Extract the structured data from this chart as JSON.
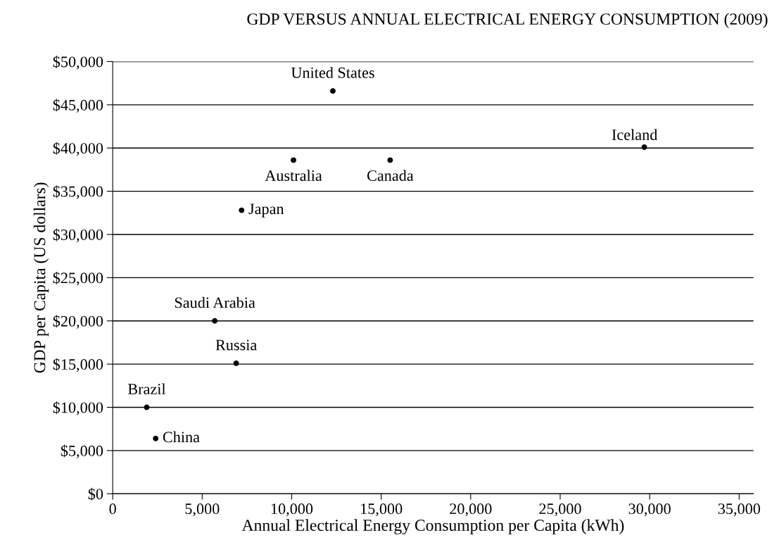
{
  "chart_data": {
    "type": "scatter",
    "title": "GDP VERSUS ANNUAL ELECTRICAL ENERGY CONSUMPTION (2009)",
    "xlabel": "Annual Electrical Energy Consumption per Capita (kWh)",
    "ylabel": "GDP per Capita (US dollars)",
    "series": [
      {
        "color": "#000000",
        "x": [
          12300,
          10100,
          15500,
          29700,
          7200,
          5700,
          6900,
          1900,
          2400
        ],
        "values": [
          46600,
          38600,
          38600,
          40100,
          32800,
          20000,
          15100,
          10000,
          6400
        ]
      }
    ],
    "annotations": [
      {
        "text": "United States",
        "x": 12300,
        "y": 46600
      },
      {
        "text": "Australia",
        "x": 10100,
        "y": 38600
      },
      {
        "text": "Canada",
        "x": 15500,
        "y": 38600
      },
      {
        "text": "Iceland",
        "x": 29700,
        "y": 40100
      },
      {
        "text": "Japan",
        "x": 7200,
        "y": 32800
      },
      {
        "text": "Saudi Arabia",
        "x": 5700,
        "y": 20000
      },
      {
        "text": "Russia",
        "x": 6900,
        "y": 15100
      },
      {
        "text": "Brazil",
        "x": 1900,
        "y": 10000
      },
      {
        "text": "China",
        "x": 2400,
        "y": 6400
      }
    ],
    "xlim": [
      0,
      35800
    ],
    "ylim": [
      0,
      50000
    ],
    "xticks": [
      {
        "value": 0,
        "label": "0"
      },
      {
        "value": 5000,
        "label": "5,000"
      },
      {
        "value": 10000,
        "label": "10,000"
      },
      {
        "value": 15000,
        "label": "15,000"
      },
      {
        "value": 20000,
        "label": "20,000"
      },
      {
        "value": 25000,
        "label": "25,000"
      },
      {
        "value": 30000,
        "label": "30,000"
      },
      {
        "value": 35000,
        "label": "35,000"
      }
    ],
    "yticks": [
      {
        "value": 0,
        "label": "$0"
      },
      {
        "value": 5000,
        "label": "$5,000"
      },
      {
        "value": 10000,
        "label": "$10,000"
      },
      {
        "value": 15000,
        "label": "$15,000"
      },
      {
        "value": 20000,
        "label": "$20,000"
      },
      {
        "value": 25000,
        "label": "$25,000"
      },
      {
        "value": 30000,
        "label": "$30,000"
      },
      {
        "value": 35000,
        "label": "$35,000"
      },
      {
        "value": 40000,
        "label": "$40,000"
      },
      {
        "value": 45000,
        "label": "$45,000"
      },
      {
        "value": 50000,
        "label": "$50,000"
      }
    ],
    "grid": "y",
    "marker": "circle",
    "legend": false
  }
}
